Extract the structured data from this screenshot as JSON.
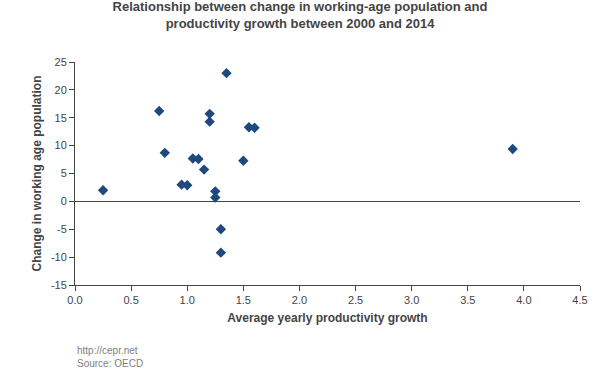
{
  "chart_data": {
    "type": "scatter",
    "title": "Relationship between change in working-age population and\nproductivity growth between 2000 and 2014",
    "xlabel": "Average yearly productivity growth",
    "ylabel": "Change in working age population",
    "x": [
      0.25,
      0.75,
      0.8,
      0.95,
      1.0,
      1.05,
      1.1,
      1.15,
      1.2,
      1.2,
      1.25,
      1.25,
      1.3,
      1.3,
      1.35,
      1.5,
      1.55,
      1.6,
      3.9
    ],
    "values": [
      2.0,
      16.2,
      8.7,
      3.0,
      2.9,
      7.7,
      7.6,
      5.7,
      14.3,
      15.7,
      1.8,
      0.7,
      -5.0,
      -9.2,
      23.0,
      7.3,
      13.3,
      13.2,
      9.4
    ],
    "color": "#1F497D",
    "marker": "diamond",
    "xlim": [
      0,
      4.5
    ],
    "ylim": [
      -15,
      25
    ],
    "xticks": [
      {
        "value": 0,
        "label": "0.0"
      },
      0.5,
      {
        "value": 1,
        "label": "1.0"
      },
      1.5,
      {
        "value": 2,
        "label": "2.0"
      },
      2.5,
      {
        "value": 3,
        "label": "3.0"
      },
      3.5,
      {
        "value": 4,
        "label": "4.0"
      },
      4.5
    ],
    "yticks": [
      -15,
      -10,
      -5,
      0,
      5,
      10,
      15,
      20,
      25
    ],
    "annotations": [
      "http://cepr.net\nSource: OECD"
    ],
    "grid": false
  }
}
